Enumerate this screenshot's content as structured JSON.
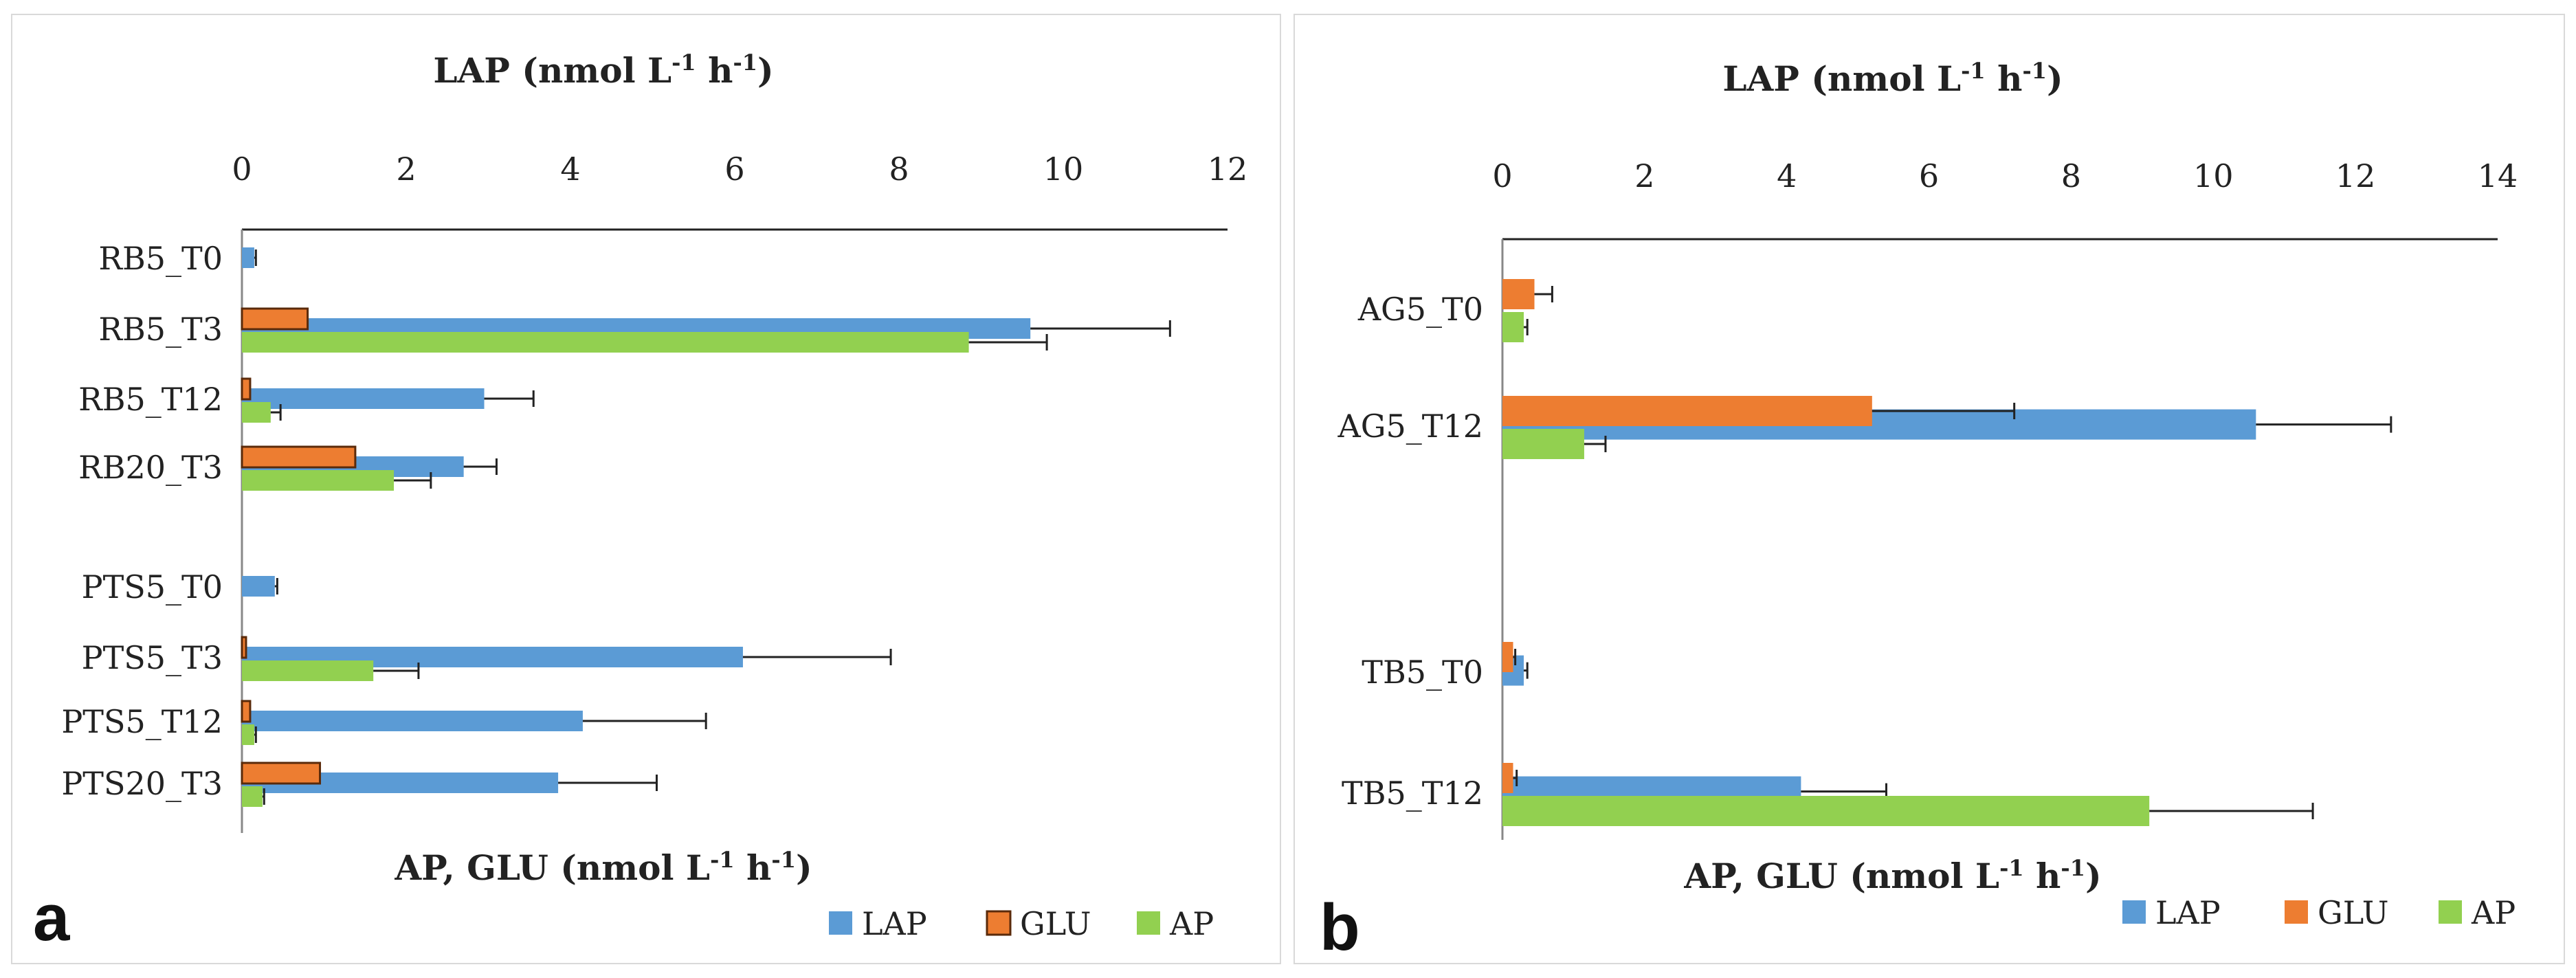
{
  "colors": {
    "LAP": "#5b9bd5",
    "GLU": "#ed7d31",
    "AP": "#92d050"
  },
  "chart_data": [
    {
      "type": "bar",
      "orientation": "horizontal",
      "panel_label": "a",
      "top_axis_title": "LAP (nmol L",
      "bottom_axis_title": "AP, GLU (nmol L",
      "unit_sup_1": "-1",
      "unit_mid": " h",
      "unit_sup_2": "-1",
      "unit_end": ")",
      "xlim": [
        0,
        12
      ],
      "xticks": [
        "0",
        "2",
        "4",
        "6",
        "8",
        "10",
        "12"
      ],
      "categories": [
        "RB5_T0",
        "RB5_T3",
        "RB5_T12",
        "RB20_T3",
        "PTS5_T0",
        "PTS5_T3",
        "PTS5_T12",
        "PTS20_T3"
      ],
      "gap_after_index": 3,
      "legend": [
        "LAP",
        "GLU",
        "AP"
      ],
      "series": [
        {
          "name": "LAP",
          "values": [
            0.15,
            9.6,
            2.95,
            2.7,
            0.4,
            6.1,
            4.15,
            3.85
          ],
          "errors": [
            0.02,
            1.7,
            0.6,
            0.4,
            0.03,
            1.8,
            1.5,
            1.2
          ]
        },
        {
          "name": "GLU",
          "values": [
            0.0,
            0.8,
            0.1,
            1.38,
            0.0,
            0.05,
            0.1,
            0.95
          ],
          "errors": [
            0,
            0,
            0,
            0,
            0,
            0,
            0,
            0
          ]
        },
        {
          "name": "AP",
          "values": [
            0.0,
            8.85,
            0.35,
            1.85,
            0.0,
            1.6,
            0.15,
            0.25
          ],
          "errors": [
            0,
            0.95,
            0.12,
            0.45,
            0,
            0.55,
            0.02,
            0.02
          ]
        }
      ]
    },
    {
      "type": "bar",
      "orientation": "horizontal",
      "panel_label": "b",
      "top_axis_title": "LAP (nmol L",
      "bottom_axis_title": "AP, GLU (nmol L",
      "unit_sup_1": "-1",
      "unit_mid": " h",
      "unit_sup_2": "-1",
      "unit_end": ")",
      "xlim": [
        0,
        14
      ],
      "xticks": [
        "0",
        "2",
        "4",
        "6",
        "8",
        "10",
        "12",
        "14"
      ],
      "categories": [
        "AG5_T0",
        "AG5_T12",
        "TB5_T0",
        "TB5_T12"
      ],
      "gap_after_index": 1,
      "legend": [
        "LAP",
        "GLU",
        "AP"
      ],
      "series": [
        {
          "name": "LAP",
          "values": [
            0.0,
            10.6,
            0.3,
            4.2
          ],
          "errors": [
            0,
            1.9,
            0.05,
            1.2
          ]
        },
        {
          "name": "GLU",
          "values": [
            0.45,
            5.2,
            0.15,
            0.15
          ],
          "errors": [
            0.25,
            2.0,
            0.03,
            0.05
          ]
        },
        {
          "name": "AP",
          "values": [
            0.3,
            1.15,
            0.0,
            9.1
          ],
          "errors": [
            0.05,
            0.3,
            0,
            2.3
          ]
        }
      ]
    }
  ]
}
